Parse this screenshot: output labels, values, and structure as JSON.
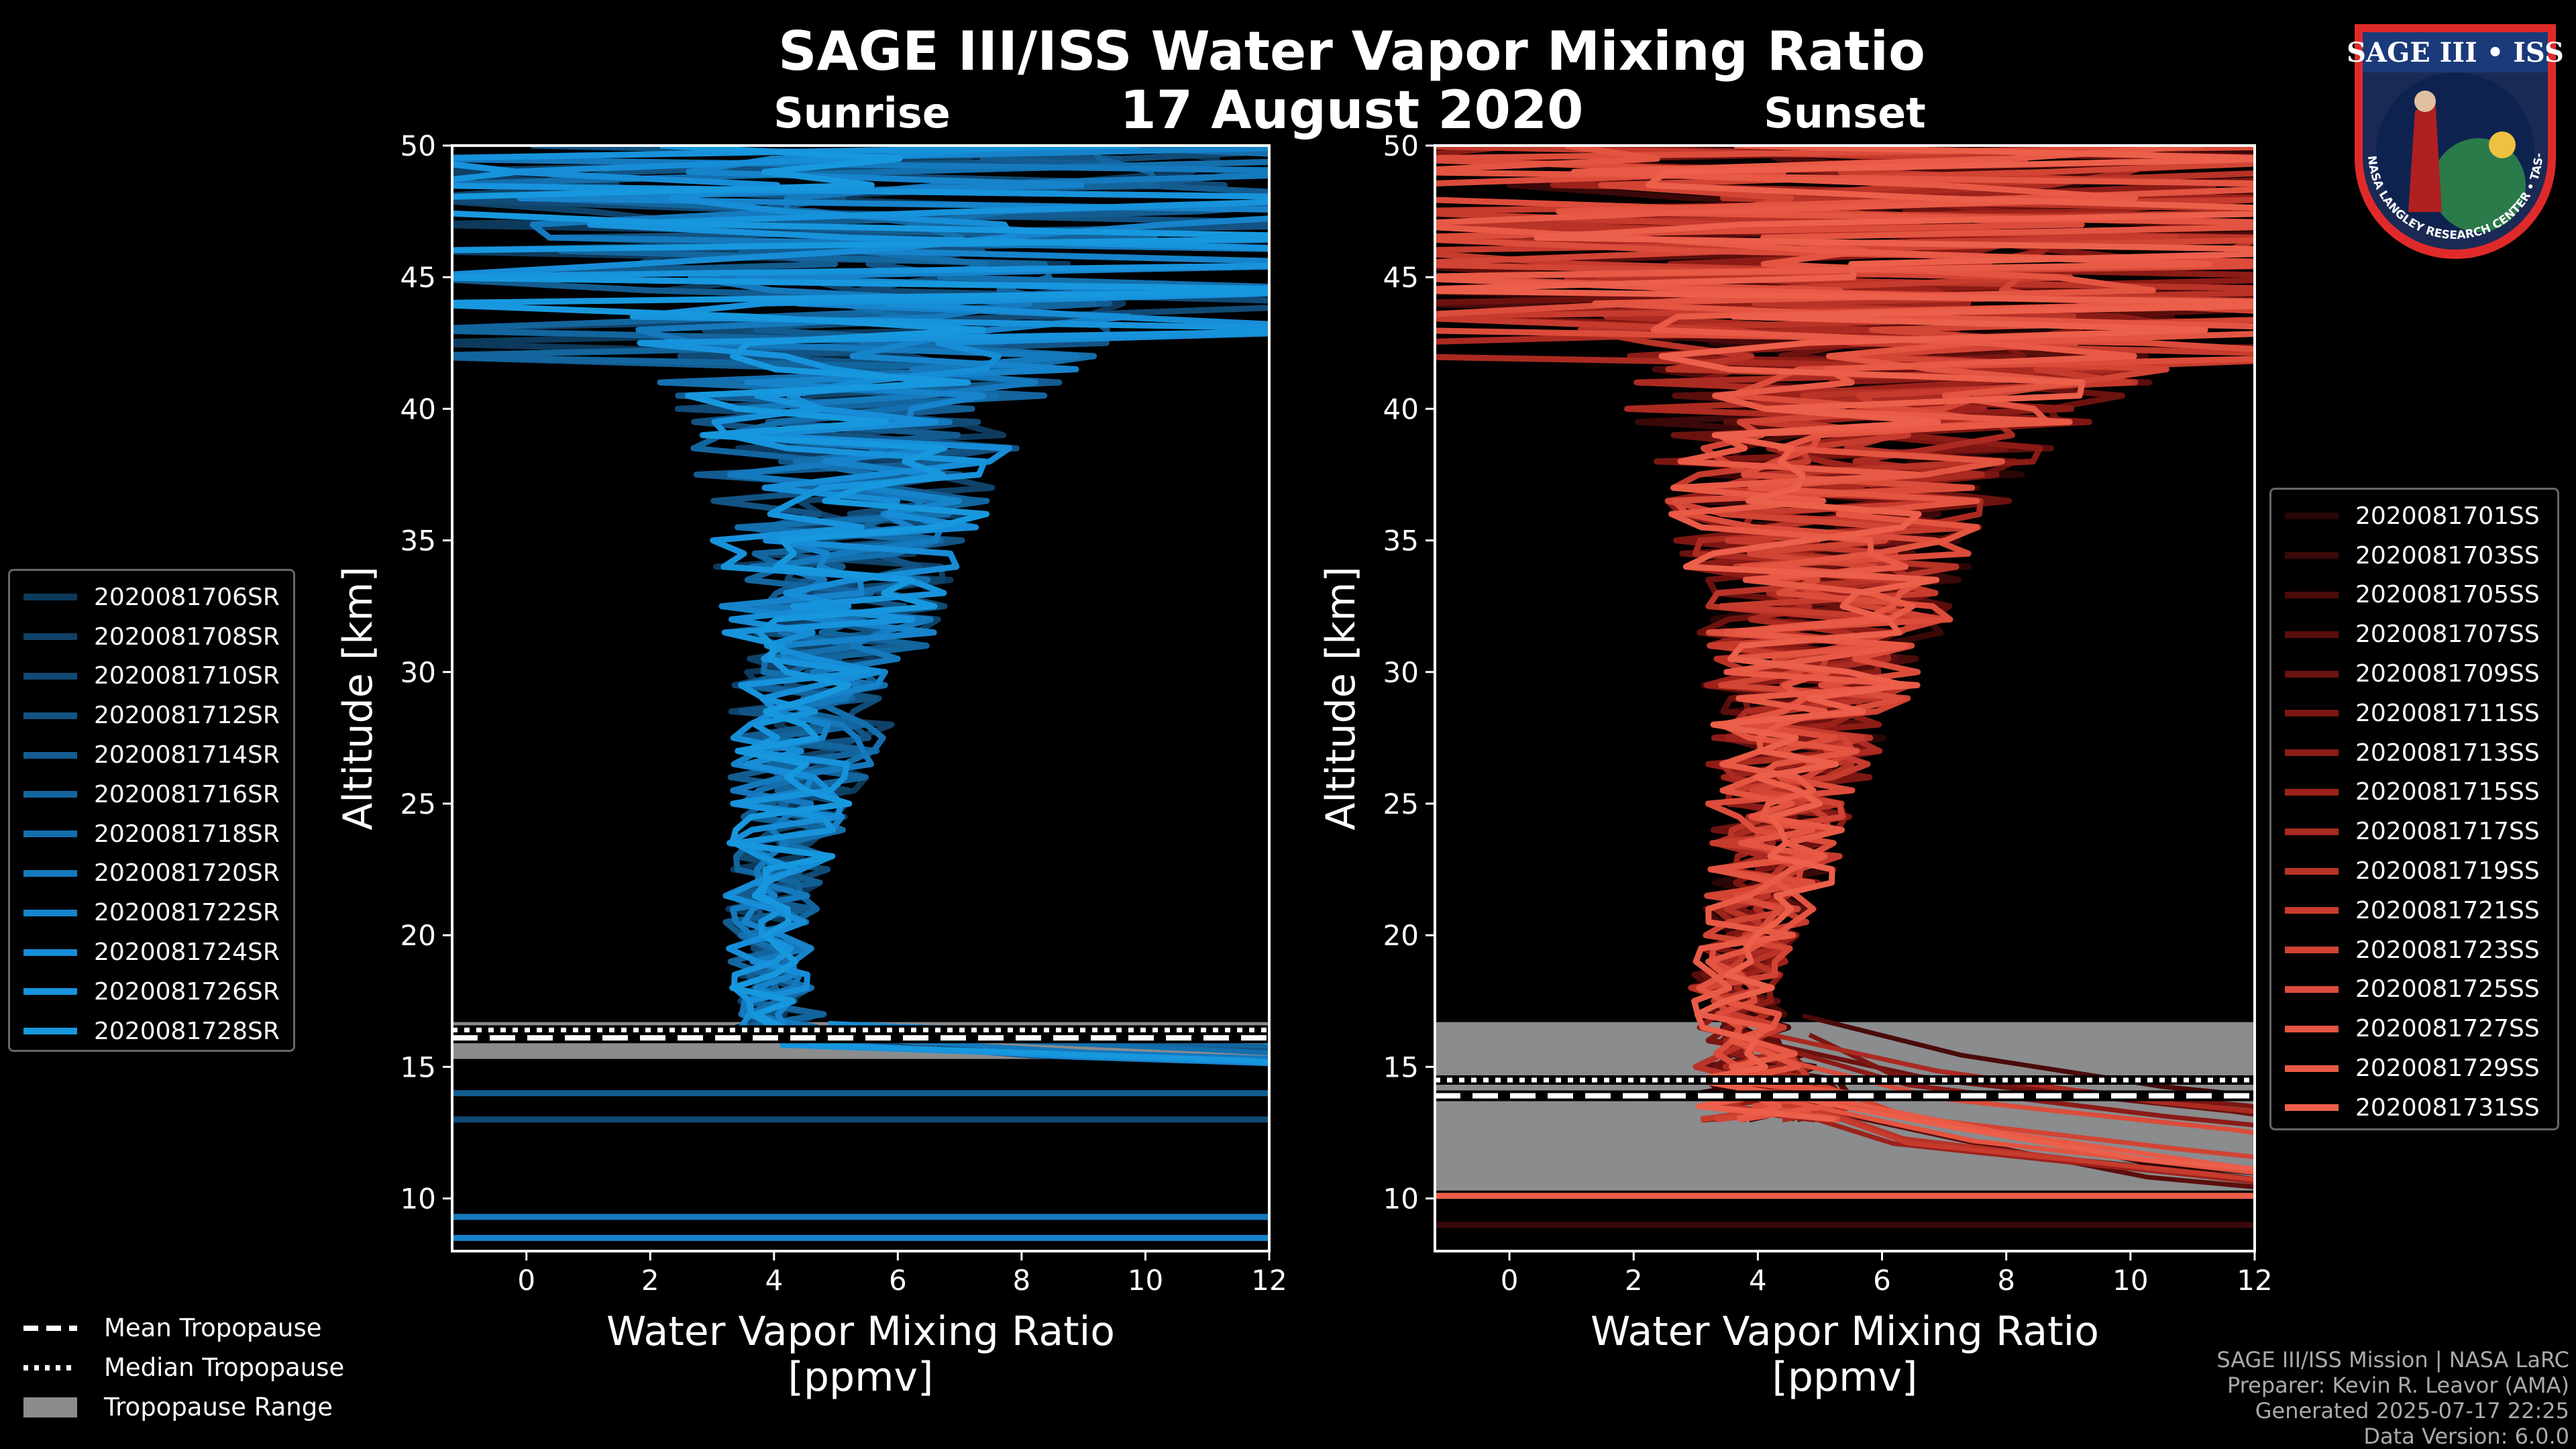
{
  "title": "SAGE III/ISS Water Vapor Mixing Ratio",
  "date": "17 August 2020",
  "panels": {
    "sunrise_title": "Sunrise",
    "sunset_title": "Sunset"
  },
  "colors": {
    "sunrise": "#1a96d8",
    "sunset": "#ee5544",
    "tropo_band": "#8a8c8e"
  },
  "logo": {
    "text": "SAGE III • ISS",
    "ring_text": "BALL • NASA LANGLEY RESEARCH CENTER • TAS-I • ESA"
  },
  "tropopause_legend": {
    "mean": "Mean Tropopause",
    "median": "Median Tropopause",
    "range": "Tropopause Range"
  },
  "footer": {
    "line1": "SAGE III/ISS Mission | NASA LaRC",
    "line2": "Preparer: Kevin R. Leavor (AMA)",
    "line3": "Generated 2025-07-17 22:25",
    "line4": "Data Version: 6.0.0"
  },
  "chart_data": [
    {
      "type": "line",
      "title": "Sunrise",
      "xlabel": "Water Vapor Mixing Ratio\n[ppmv]",
      "ylabel": "Altitude [km]",
      "xlim": [
        -1.2,
        12
      ],
      "ylim": [
        8,
        50
      ],
      "xticks": [
        0,
        2,
        4,
        6,
        8,
        10,
        12
      ],
      "yticks": [
        10,
        15,
        20,
        25,
        30,
        35,
        40,
        45,
        50
      ],
      "tropopause": {
        "min": 15.3,
        "max": 16.7,
        "mean": 16.1,
        "median": 16.4
      },
      "series_names": [
        "2020081706SR",
        "2020081708SR",
        "2020081710SR",
        "2020081712SR",
        "2020081714SR",
        "2020081716SR",
        "2020081718SR",
        "2020081720SR",
        "2020081722SR",
        "2020081724SR",
        "2020081726SR",
        "2020081728SR"
      ],
      "series_colors": [
        "#0d3a5c",
        "#0f4268",
        "#114a75",
        "#125383",
        "#135c90",
        "#13659e",
        "#146fad",
        "#1579bd",
        "#1683cb",
        "#178dd7",
        "#1793dc",
        "#1798de"
      ],
      "profile_shape": {
        "altitudes": [
          16,
          18,
          20,
          22,
          25,
          28,
          30,
          33,
          35,
          38,
          40,
          42,
          45,
          48,
          50
        ],
        "mean": [
          4.2,
          4.0,
          3.9,
          4.0,
          4.3,
          4.6,
          4.8,
          5.0,
          5.1,
          5.2,
          5.4,
          5.6,
          5.7,
          5.8,
          5.8
        ],
        "spread": [
          0.8,
          0.7,
          0.7,
          0.8,
          1.0,
          1.3,
          1.5,
          1.9,
          2.2,
          2.6,
          3.0,
          4.0,
          5.0,
          6.0,
          6.5
        ]
      }
    },
    {
      "type": "line",
      "title": "Sunset",
      "xlabel": "Water Vapor Mixing Ratio\n[ppmv]",
      "ylabel": "Altitude [km]",
      "xlim": [
        -1.2,
        12
      ],
      "ylim": [
        8,
        50
      ],
      "xticks": [
        0,
        2,
        4,
        6,
        8,
        10,
        12
      ],
      "yticks": [
        10,
        15,
        20,
        25,
        30,
        35,
        40,
        45,
        50
      ],
      "tropopause": {
        "min": 10.3,
        "max": 16.7,
        "mean": 13.9,
        "median": 14.5
      },
      "series_names": [
        "2020081701SS",
        "2020081703SS",
        "2020081705SS",
        "2020081707SS",
        "2020081709SS",
        "2020081711SS",
        "2020081713SS",
        "2020081715SS",
        "2020081717SS",
        "2020081719SS",
        "2020081721SS",
        "2020081723SS",
        "2020081725SS",
        "2020081727SS",
        "2020081729SS",
        "2020081731SS"
      ],
      "series_colors": [
        "#2a0606",
        "#3a0808",
        "#4a0b0a",
        "#5a0e0c",
        "#6b120f",
        "#7c1612",
        "#8c1b16",
        "#9c221b",
        "#ab2a21",
        "#b93327",
        "#c63b2d",
        "#d24434",
        "#dc4c3b",
        "#e35441",
        "#e85a46",
        "#ec5f4a"
      ],
      "profile_shape": {
        "altitudes": [
          13,
          16,
          18,
          20,
          22,
          25,
          28,
          30,
          33,
          35,
          38,
          40,
          42,
          45,
          48,
          50
        ],
        "mean": [
          4.5,
          3.8,
          3.6,
          3.9,
          4.2,
          4.4,
          4.7,
          4.9,
          5.1,
          5.2,
          5.5,
          5.7,
          6.0,
          6.2,
          6.3,
          6.3
        ],
        "spread": [
          1.5,
          0.8,
          0.7,
          0.8,
          1.0,
          1.2,
          1.5,
          1.8,
          2.2,
          2.6,
          3.2,
          4.0,
          5.0,
          6.0,
          6.5,
          7.0
        ]
      }
    }
  ]
}
